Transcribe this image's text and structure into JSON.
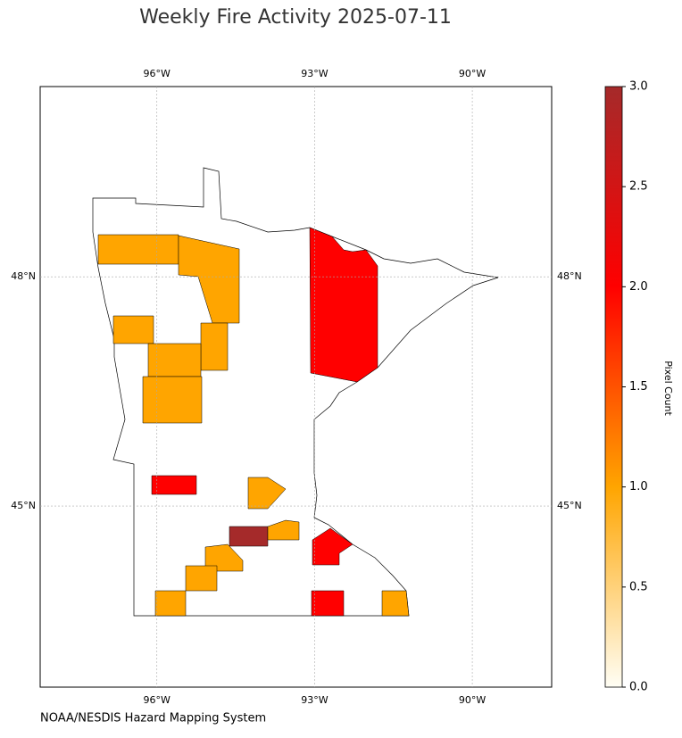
{
  "chart_data": {
    "type": "choropleth",
    "title": "Weekly Fire Activity 2025-07-11",
    "lon_range": [
      -98.22,
      -88.49
    ],
    "lat_range": [
      42.63,
      50.49
    ],
    "lon_ticks": [
      {
        "value": -96,
        "label": "96°W"
      },
      {
        "value": -93,
        "label": "93°W"
      },
      {
        "value": -90,
        "label": "90°W"
      }
    ],
    "lat_ticks": [
      {
        "value": 48,
        "label": "48°N"
      },
      {
        "value": 45,
        "label": "45°N"
      }
    ],
    "region_values": [
      1,
      1,
      1,
      1,
      1,
      1,
      2,
      2,
      1,
      3,
      1,
      2,
      1,
      1,
      1,
      2,
      1
    ],
    "colorbar_label": "Pixel Count",
    "colorbar_lim": [
      0,
      3
    ],
    "colorbar_ticks": [
      {
        "value": 0,
        "label": "0.0"
      },
      {
        "value": 0.5,
        "label": "0.5"
      },
      {
        "value": 1,
        "label": "1.0"
      },
      {
        "value": 1.5,
        "label": "1.5"
      },
      {
        "value": 2,
        "label": "2.0"
      },
      {
        "value": 2.5,
        "label": "2.5"
      },
      {
        "value": 3,
        "label": "3.0"
      }
    ],
    "grid": true,
    "source": "NOAA/NESDIS Hazard Mapping System"
  }
}
